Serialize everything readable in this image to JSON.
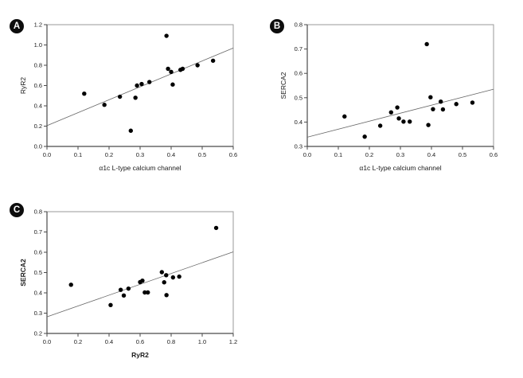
{
  "figure": {
    "description": "Three scatter plots with linear regression lines",
    "background_color": "#ffffff"
  },
  "colors": {
    "point": "#000000",
    "trendline": "#666666",
    "axis": "#4a4a4a",
    "frame": "#989898",
    "tick_text": "#1a1a1a",
    "badge_background": "#0d0d0d",
    "badge_text": "#ffffff"
  },
  "chart_data": [
    {
      "badge": "A",
      "type": "scatter",
      "xlabel": "α1c L-type calcium channel",
      "ylabel": "RyR2",
      "xlim": [
        0.0,
        0.6
      ],
      "ylim": [
        0.0,
        1.2
      ],
      "x_tick_labels": [
        "0.0",
        "0.1",
        "0.2",
        "0.3",
        "0.4",
        "0.5",
        "0.6"
      ],
      "y_tick_labels": [
        "0.0",
        "0.2",
        "0.4",
        "0.6",
        "0.8",
        "1.0",
        "1.2"
      ],
      "bold_axis_labels": false,
      "grid": false,
      "points": [
        [
          0.12,
          0.52
        ],
        [
          0.185,
          0.41
        ],
        [
          0.235,
          0.49
        ],
        [
          0.27,
          0.155
        ],
        [
          0.285,
          0.48
        ],
        [
          0.29,
          0.6
        ],
        [
          0.305,
          0.615
        ],
        [
          0.33,
          0.635
        ],
        [
          0.385,
          1.09
        ],
        [
          0.39,
          0.765
        ],
        [
          0.4,
          0.735
        ],
        [
          0.405,
          0.61
        ],
        [
          0.43,
          0.755
        ],
        [
          0.437,
          0.765
        ],
        [
          0.485,
          0.8
        ],
        [
          0.535,
          0.845
        ]
      ],
      "trendline": {
        "x1": 0.0,
        "y1": 0.205,
        "x2": 0.6,
        "y2": 0.97
      }
    },
    {
      "badge": "B",
      "type": "scatter",
      "xlabel": "α1c L-type calcium channel",
      "ylabel": "SERCA2",
      "xlim": [
        0.0,
        0.6
      ],
      "ylim": [
        0.3,
        0.8
      ],
      "x_tick_labels": [
        "0.0",
        "0.1",
        "0.2",
        "0.3",
        "0.4",
        "0.5",
        "0.6"
      ],
      "y_tick_labels": [
        "0.3",
        "0.4",
        "0.5",
        "0.6",
        "0.7",
        "0.8"
      ],
      "bold_axis_labels": false,
      "grid": false,
      "points": [
        [
          0.12,
          0.423
        ],
        [
          0.185,
          0.34
        ],
        [
          0.235,
          0.385
        ],
        [
          0.27,
          0.44
        ],
        [
          0.29,
          0.46
        ],
        [
          0.295,
          0.415
        ],
        [
          0.31,
          0.402
        ],
        [
          0.33,
          0.402
        ],
        [
          0.385,
          0.72
        ],
        [
          0.39,
          0.388
        ],
        [
          0.397,
          0.502
        ],
        [
          0.405,
          0.453
        ],
        [
          0.43,
          0.484
        ],
        [
          0.437,
          0.452
        ],
        [
          0.48,
          0.474
        ],
        [
          0.532,
          0.48
        ]
      ],
      "trendline": {
        "x1": 0.0,
        "y1": 0.338,
        "x2": 0.6,
        "y2": 0.535
      }
    },
    {
      "badge": "C",
      "type": "scatter",
      "xlabel": "RyR2",
      "ylabel": "SERCA2",
      "xlim": [
        0.0,
        1.2
      ],
      "ylim": [
        0.2,
        0.8
      ],
      "x_tick_labels": [
        "0.0",
        "0.2",
        "0.4",
        "0.6",
        "0.8",
        "1.0",
        "1.2"
      ],
      "y_tick_labels": [
        "0.2",
        "0.3",
        "0.4",
        "0.5",
        "0.6",
        "0.7",
        "0.8"
      ],
      "bold_axis_labels": true,
      "grid": false,
      "points": [
        [
          0.155,
          0.44
        ],
        [
          0.41,
          0.34
        ],
        [
          0.475,
          0.415
        ],
        [
          0.495,
          0.387
        ],
        [
          0.525,
          0.421
        ],
        [
          0.6,
          0.453
        ],
        [
          0.615,
          0.46
        ],
        [
          0.63,
          0.402
        ],
        [
          0.65,
          0.402
        ],
        [
          0.74,
          0.502
        ],
        [
          0.755,
          0.452
        ],
        [
          0.768,
          0.487
        ],
        [
          0.77,
          0.389
        ],
        [
          0.812,
          0.476
        ],
        [
          0.852,
          0.48
        ],
        [
          1.09,
          0.72
        ]
      ],
      "trendline": {
        "x1": 0.0,
        "y1": 0.282,
        "x2": 1.2,
        "y2": 0.602
      }
    }
  ]
}
